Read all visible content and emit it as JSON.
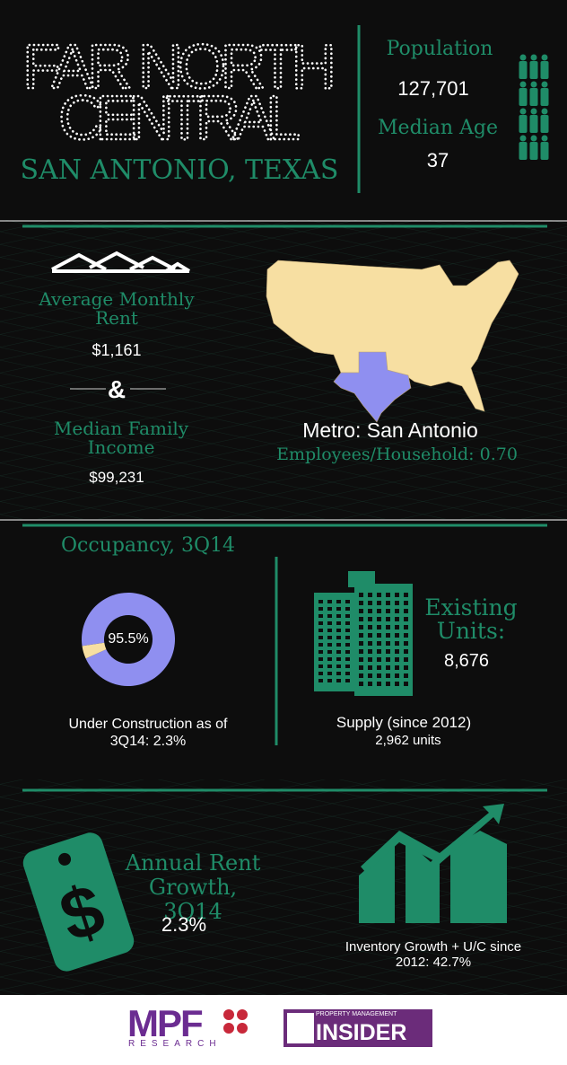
{
  "header": {
    "title_line1": "FAR NORTH",
    "title_line2": "CENTRAL",
    "subtitle": "SAN ANTONIO, TEXAS",
    "population_label": "Population",
    "population": "127,701",
    "median_age_label": "Median Age",
    "median_age": "37"
  },
  "rent": {
    "rent_label": "Average Monthly Rent",
    "rent": "$1,161",
    "ampersand": "&",
    "income_label": "Median Family Income",
    "income": "$99,231",
    "metro": "Metro: San Antonio",
    "employees": "Employees/Household: 0.70"
  },
  "occupancy": {
    "title": "Occupancy, 3Q14",
    "value": 95.5,
    "value_label": "95.5%",
    "color": "#8f8ff0",
    "rest_color": "#f7dfa2",
    "under_construction": "Under Construction as of 3Q14: 2.3%"
  },
  "units": {
    "label": "Existing Units:",
    "value": "8,676",
    "supply_label": "Supply (since 2012)",
    "supply": "2,962 units"
  },
  "growth": {
    "label": "Annual Rent Growth, 3Q14",
    "value": "2.3%",
    "inventory": "Inventory Growth + U/C since 2012: 42.7%"
  },
  "footer": {
    "mpf": "MPF",
    "research": "RESEARCH",
    "pmi_top": "PROPERTY MANAGEMENT",
    "pmi": "INSIDER"
  }
}
